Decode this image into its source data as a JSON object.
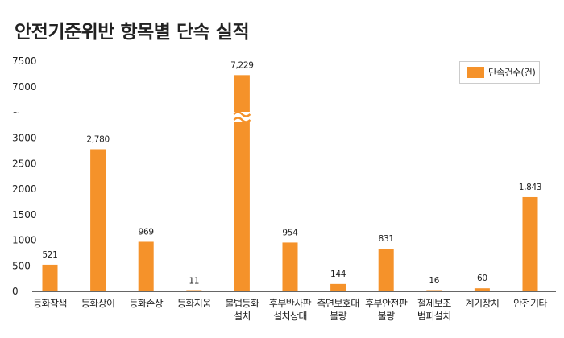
{
  "title": "안전기준위반 항목별 단속 실적",
  "colors": {
    "bar": "#F5922A",
    "axis": "#666666",
    "text": "#222222"
  },
  "chart_data": {
    "type": "bar",
    "title": "안전기준위반 항목별 단속 실적",
    "xlabel": "",
    "ylabel": "",
    "y_axis_break": {
      "from": 3000,
      "to": 7000,
      "break_tick_label": "~"
    },
    "ylim": [
      0,
      7500
    ],
    "y_ticks": [
      "0",
      "500",
      "1000",
      "1500",
      "2000",
      "2500",
      "3000",
      "~",
      "7000",
      "7500"
    ],
    "legend_position": "top-right",
    "grid": false,
    "categories": [
      [
        "등화착색"
      ],
      [
        "등화상이"
      ],
      [
        "등화손상"
      ],
      [
        "등화지움"
      ],
      [
        "불법등화",
        "설치"
      ],
      [
        "후부반사판",
        "설치상태"
      ],
      [
        "측면보호대",
        "불량"
      ],
      [
        "후부안전판",
        "불량"
      ],
      [
        "철제보조",
        "범퍼설치"
      ],
      [
        "계기장치"
      ],
      [
        "안전기타"
      ]
    ],
    "series": [
      {
        "name": "단속건수(건)",
        "values": [
          521,
          2780,
          969,
          11,
          7229,
          954,
          144,
          831,
          16,
          60,
          1843
        ],
        "labels": [
          "521",
          "2,780",
          "969",
          "11",
          "7,229",
          "954",
          "144",
          "831",
          "16",
          "60",
          "1,843"
        ]
      }
    ]
  }
}
